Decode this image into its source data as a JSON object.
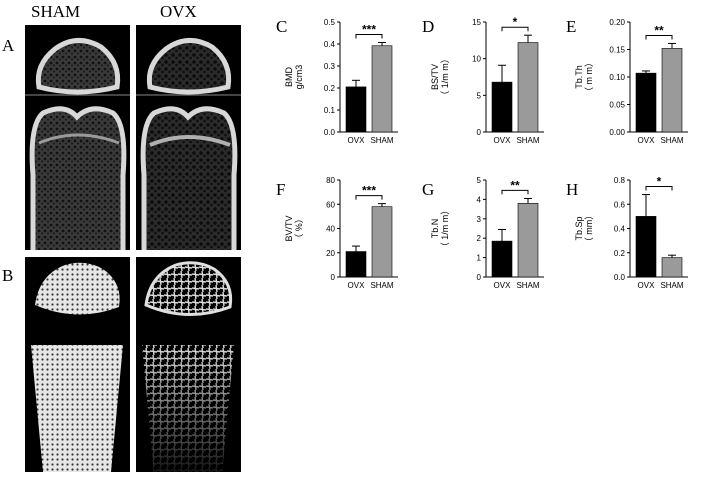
{
  "figure": {
    "column_headers": [
      "SHAM",
      "OVX"
    ],
    "row_labels": [
      "A",
      "B"
    ]
  },
  "chart_data": [
    {
      "panel": "C",
      "type": "bar",
      "categories": [
        "OVX",
        "SHAM"
      ],
      "values": [
        0.205,
        0.392
      ],
      "errors": [
        0.03,
        0.015
      ],
      "ylabel": [
        "BMD",
        "g/cm3"
      ],
      "ylim": [
        0,
        0.5
      ],
      "yticks": [
        "0.0",
        "0.1",
        "0.2",
        "0.3",
        "0.4",
        "0.5"
      ],
      "significance": "***",
      "bar_colors": [
        "#000000",
        "#9a9a9a"
      ]
    },
    {
      "panel": "D",
      "type": "bar",
      "categories": [
        "OVX",
        "SHAM"
      ],
      "values": [
        6.8,
        12.2
      ],
      "errors": [
        2.3,
        1.0
      ],
      "ylabel": [
        "BS/TV",
        "（ 1/m m）"
      ],
      "ylim": [
        0,
        15
      ],
      "yticks": [
        "0",
        "5",
        "10",
        "15"
      ],
      "significance": "*",
      "bar_colors": [
        "#000000",
        "#9a9a9a"
      ]
    },
    {
      "panel": "E",
      "type": "bar",
      "categories": [
        "OVX",
        "SHAM"
      ],
      "values": [
        0.107,
        0.152
      ],
      "errors": [
        0.004,
        0.009
      ],
      "ylabel": [
        "Tb.Th",
        "（ m m）"
      ],
      "ylim": [
        0,
        0.2
      ],
      "yticks": [
        "0.00",
        "0.05",
        "0.10",
        "0.15",
        "0.20"
      ],
      "significance": "**",
      "bar_colors": [
        "#000000",
        "#9a9a9a"
      ]
    },
    {
      "panel": "F",
      "type": "bar",
      "categories": [
        "OVX",
        "SHAM"
      ],
      "values": [
        21,
        58
      ],
      "errors": [
        4.5,
        2.5
      ],
      "ylabel": [
        "BV/TV",
        "（ %）"
      ],
      "ylim": [
        0,
        80
      ],
      "yticks": [
        "0",
        "20",
        "40",
        "60",
        "80"
      ],
      "significance": "***",
      "bar_colors": [
        "#000000",
        "#9a9a9a"
      ]
    },
    {
      "panel": "G",
      "type": "bar",
      "categories": [
        "OVX",
        "SHAM"
      ],
      "values": [
        1.85,
        3.8
      ],
      "errors": [
        0.6,
        0.25
      ],
      "ylabel": [
        "Tb.N",
        "（ 1/m m）"
      ],
      "ylim": [
        0,
        5
      ],
      "yticks": [
        "0",
        "1",
        "2",
        "3",
        "4",
        "5"
      ],
      "significance": "**",
      "bar_colors": [
        "#000000",
        "#9a9a9a"
      ]
    },
    {
      "panel": "H",
      "type": "bar",
      "categories": [
        "OVX",
        "SHAM"
      ],
      "values": [
        0.5,
        0.16
      ],
      "errors": [
        0.18,
        0.02
      ],
      "ylabel": [
        "Tb.Sp",
        "（ mm）"
      ],
      "ylim": [
        0,
        0.8
      ],
      "yticks": [
        "0.0",
        "0.2",
        "0.4",
        "0.6",
        "0.8"
      ],
      "significance": "*",
      "bar_colors": [
        "#000000",
        "#9a9a9a"
      ]
    }
  ]
}
